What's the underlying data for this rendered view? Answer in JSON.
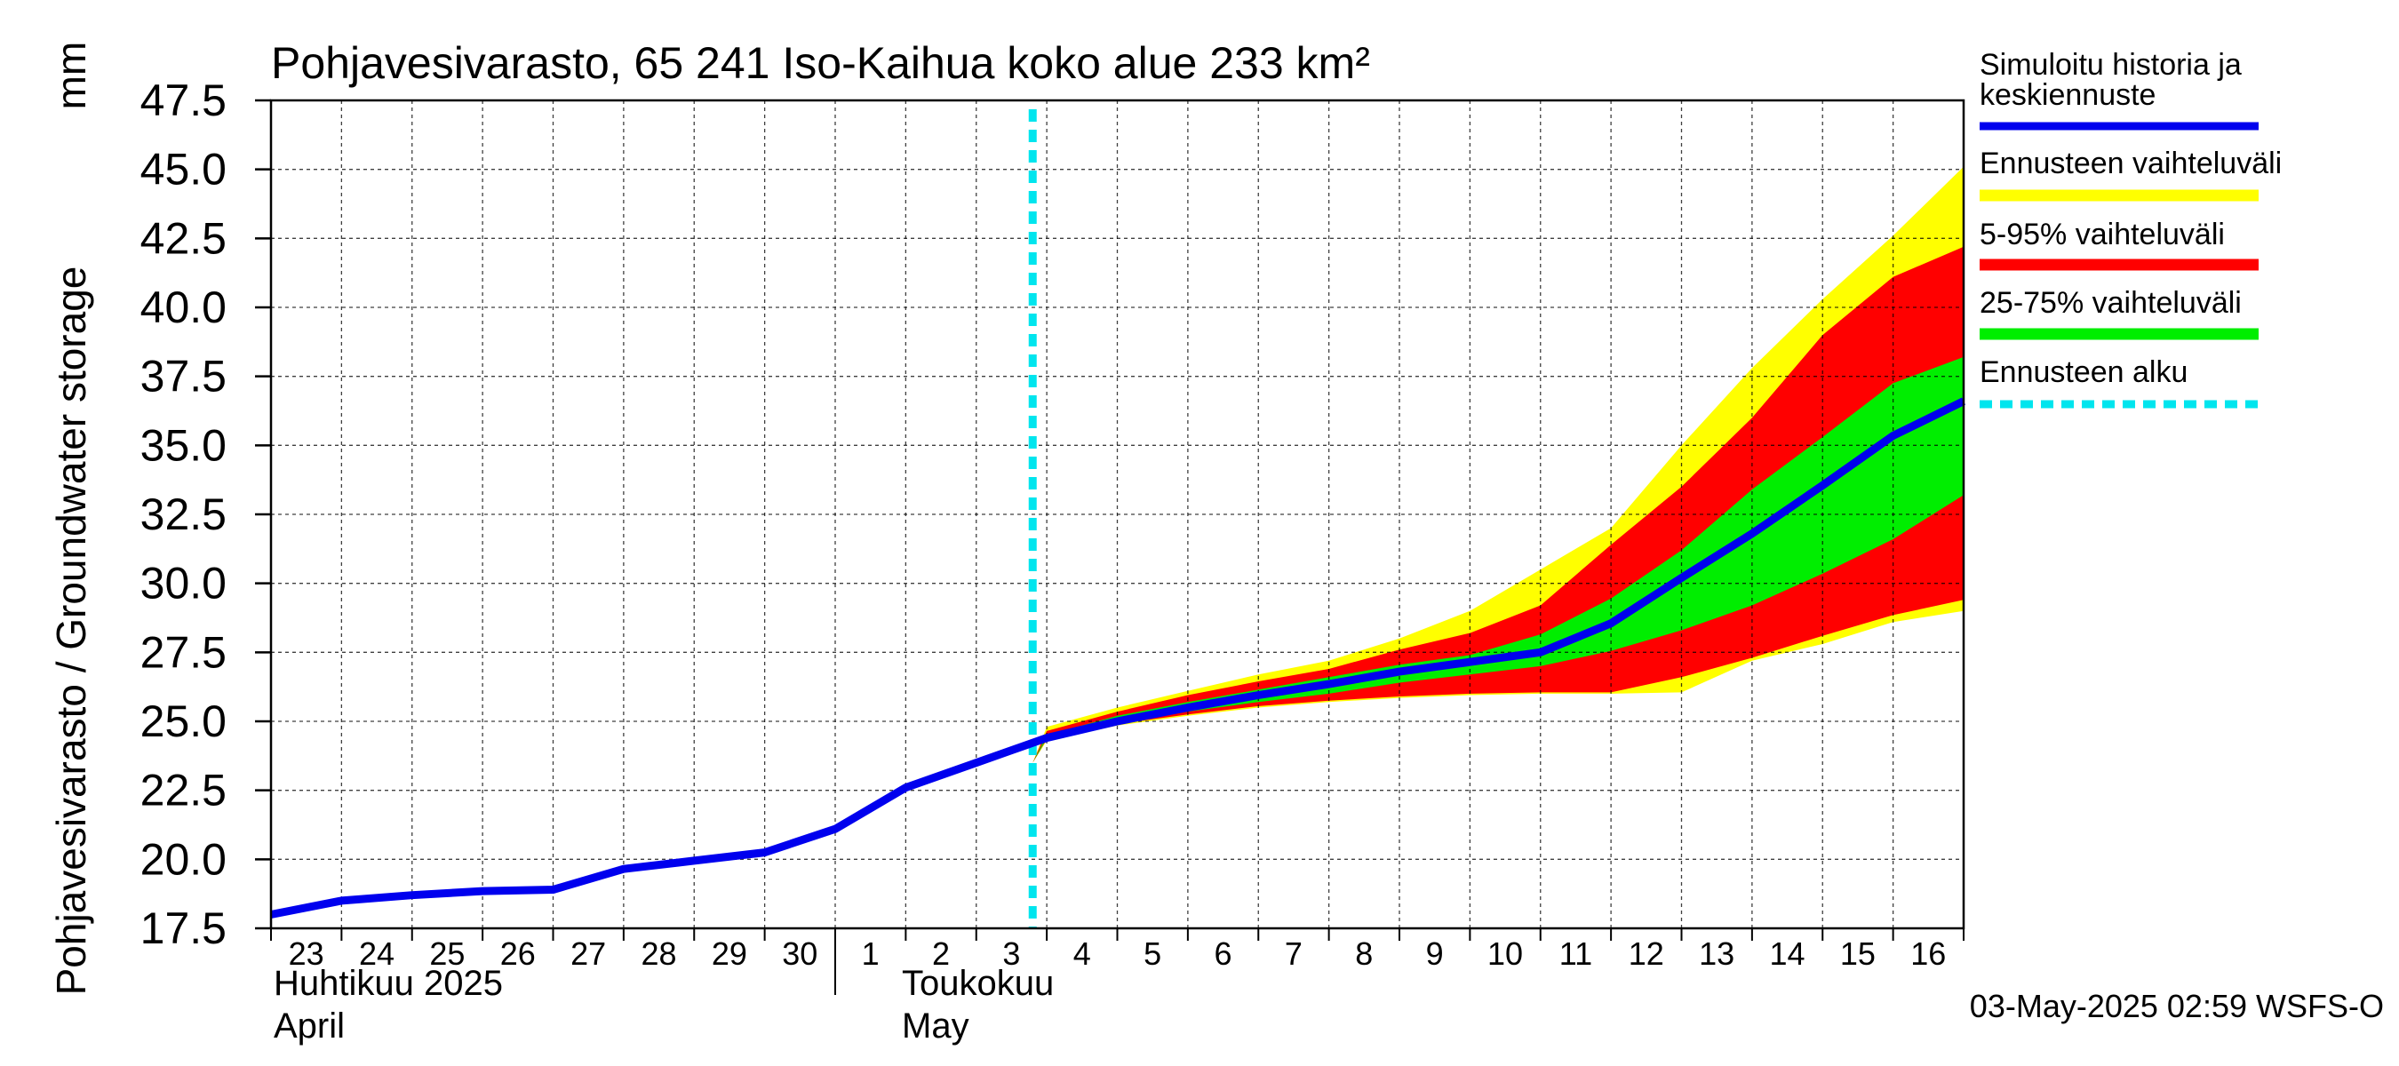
{
  "chart_data": {
    "type": "area",
    "title": "Pohjavesivarasto, 65 241 Iso-Kaihua koko alue 233 km²",
    "ylabel": "Pohjavesivarasto / Groundwater storage",
    "yunit": "mm",
    "ylim": [
      17.5,
      47.5
    ],
    "ytick_labels": [
      "17.5",
      "20.0",
      "22.5",
      "25.0",
      "27.5",
      "30.0",
      "32.5",
      "35.0",
      "37.5",
      "40.0",
      "42.5",
      "45.0",
      "47.5"
    ],
    "x_day_labels": [
      "23",
      "24",
      "25",
      "26",
      "27",
      "28",
      "29",
      "30",
      "1",
      "2",
      "3",
      "4",
      "5",
      "6",
      "7",
      "8",
      "9",
      "10",
      "11",
      "12",
      "13",
      "14",
      "15",
      "16"
    ],
    "month_labels": [
      {
        "fi": "Huhtikuu  2025",
        "en": "April"
      },
      {
        "fi": "Toukokuu",
        "en": "May"
      }
    ],
    "forecast_start_day": 10.8,
    "grid": true,
    "legend_position": "right",
    "legend": [
      {
        "label": "Simuloitu historia ja keskiennuste",
        "color": "#0000ee",
        "style": "line"
      },
      {
        "label": "Ennusteen vaihteluväli",
        "color": "#ffff00",
        "style": "band"
      },
      {
        "label": "5-95% vaihteluväli",
        "color": "#ff0000",
        "style": "band"
      },
      {
        "label": "25-75% vaihteluväli",
        "color": "#00ee00",
        "style": "band"
      },
      {
        "label": "Ennusteen alku",
        "color": "#00e5ee",
        "style": "dashed"
      }
    ],
    "colors": {
      "history": "#0000ee",
      "range": "#ffff00",
      "p5_95": "#ff0000",
      "p25_75": "#00ee00",
      "forecast_start": "#00e5ee"
    },
    "history": {
      "x": [
        0,
        1,
        2,
        3,
        4,
        5,
        6,
        7,
        8,
        9,
        10,
        11,
        12,
        13,
        14,
        15,
        16,
        17,
        18,
        19,
        20,
        21,
        22,
        23,
        24
      ],
      "y": [
        18.0,
        18.5,
        18.7,
        18.85,
        18.9,
        19.65,
        19.95,
        20.25,
        21.1,
        22.6,
        23.5,
        24.4,
        25.0,
        25.5,
        25.95,
        26.35,
        26.8,
        27.15,
        27.5,
        28.55,
        30.2,
        31.8,
        33.55,
        35.35,
        36.6
      ]
    },
    "bands": {
      "x": [
        10.8,
        11,
        12,
        13,
        14,
        15,
        16,
        17,
        18,
        19,
        20,
        21,
        22,
        23,
        24
      ],
      "range_low": [
        23.5,
        24.3,
        24.85,
        25.2,
        25.5,
        25.7,
        25.85,
        25.95,
        26.0,
        26.0,
        26.05,
        27.2,
        27.8,
        28.6,
        29.0
      ],
      "range_high": [
        23.5,
        24.8,
        25.5,
        26.1,
        26.7,
        27.2,
        28.0,
        29.0,
        30.5,
        32.0,
        35.0,
        37.8,
        40.3,
        42.6,
        45.1
      ],
      "p5": [
        23.5,
        24.35,
        24.9,
        25.25,
        25.55,
        25.75,
        25.9,
        26.0,
        26.05,
        26.05,
        26.6,
        27.3,
        28.1,
        28.85,
        29.4
      ],
      "p95": [
        23.5,
        24.65,
        25.35,
        25.95,
        26.45,
        26.9,
        27.6,
        28.2,
        29.2,
        31.4,
        33.5,
        36.0,
        39.0,
        41.1,
        42.2
      ],
      "p25": [
        23.5,
        24.38,
        24.95,
        25.35,
        25.7,
        26.0,
        26.4,
        26.7,
        27.0,
        27.55,
        28.3,
        29.2,
        30.35,
        31.6,
        33.2
      ],
      "p75": [
        23.5,
        24.5,
        25.2,
        25.7,
        26.15,
        26.6,
        27.05,
        27.4,
        28.15,
        29.45,
        31.2,
        33.4,
        35.3,
        37.25,
        38.2
      ]
    },
    "footer": "03-May-2025 02:59 WSFS-O"
  }
}
